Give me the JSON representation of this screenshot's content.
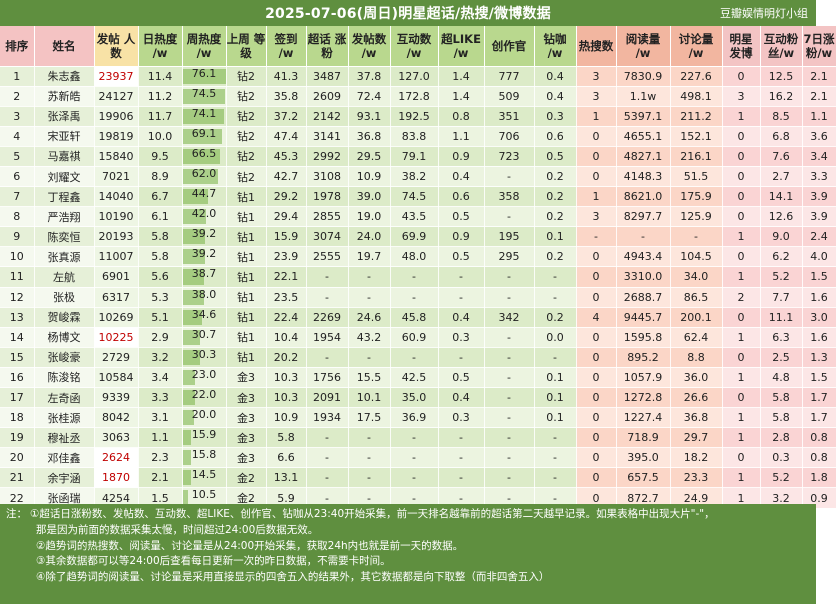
{
  "title": "2025-07-06(周日)明星超话/热搜/微博数据",
  "brand": "豆瓣娱情明灯小组",
  "columns": [
    {
      "key": "rank",
      "label": "排序",
      "cls": "h-pink"
    },
    {
      "key": "name",
      "label": "姓名",
      "cls": "h-pink"
    },
    {
      "key": "posts",
      "label": "发帖 人数",
      "cls": "h-yellow"
    },
    {
      "key": "daily_heat",
      "label": "日热度 /w",
      "cls": "h-green"
    },
    {
      "key": "weekly_heat",
      "label": "周热度 /w",
      "cls": "h-green"
    },
    {
      "key": "last_level",
      "label": "上周 等级",
      "cls": "h-green"
    },
    {
      "key": "checkin",
      "label": "签到 /w",
      "cls": "h-green"
    },
    {
      "key": "fans_growth",
      "label": "超话 涨粉",
      "cls": "h-green"
    },
    {
      "key": "post_count",
      "label": "发帖数 /w",
      "cls": "h-green"
    },
    {
      "key": "interaction",
      "label": "互动数 /w",
      "cls": "h-green"
    },
    {
      "key": "super_like",
      "label": "超LIKE /w",
      "cls": "h-green"
    },
    {
      "key": "creator",
      "label": "创作官",
      "cls": "h-green"
    },
    {
      "key": "diamond",
      "label": "钻咖 /w",
      "cls": "h-green"
    },
    {
      "key": "hot_search",
      "label": "热搜数",
      "cls": "h-salmon"
    },
    {
      "key": "reads",
      "label": "阅读量 /w",
      "cls": "h-salmon"
    },
    {
      "key": "discussion",
      "label": "讨论量 /w",
      "cls": "h-salmon"
    },
    {
      "key": "weibo_posts",
      "label": "明星 发博",
      "cls": "h-pink2"
    },
    {
      "key": "interact_fans",
      "label": "互动粉 丝/w",
      "cls": "h-pink2"
    },
    {
      "key": "weekly_fans",
      "label": "7日涨 粉/w",
      "cls": "h-pink2"
    }
  ],
  "bar_max": 76.1,
  "rows": [
    {
      "rank": "1",
      "name": "朱志鑫",
      "posts": "23937",
      "posts_red": true,
      "daily_heat": "11.4",
      "weekly_heat": "76.1",
      "weekly_heat_value": 76.1,
      "last_level": "钻2",
      "checkin": "41.3",
      "fans_growth": "3487",
      "post_count": "37.8",
      "interaction": "127.0",
      "super_like": "1.4",
      "creator": "777",
      "diamond": "0.4",
      "hot_search": "3",
      "reads": "7830.9",
      "discussion": "227.6",
      "weibo_posts": "0",
      "interact_fans": "12.5",
      "weekly_fans": "2.1"
    },
    {
      "rank": "2",
      "name": "苏新皓",
      "posts": "24127",
      "daily_heat": "11.2",
      "weekly_heat": "74.5",
      "weekly_heat_value": 74.5,
      "last_level": "钻2",
      "checkin": "35.8",
      "fans_growth": "2609",
      "post_count": "72.4",
      "interaction": "172.8",
      "super_like": "1.4",
      "creator": "509",
      "diamond": "0.4",
      "hot_search": "3",
      "reads": "1.1w",
      "reads_red": true,
      "discussion": "498.1",
      "discussion_red": true,
      "weibo_posts": "3",
      "interact_fans": "16.2",
      "weekly_fans": "2.1"
    },
    {
      "rank": "3",
      "name": "张泽禹",
      "posts": "19906",
      "daily_heat": "11.7",
      "weekly_heat": "74.1",
      "weekly_heat_value": 74.1,
      "last_level": "钻2",
      "checkin": "37.2",
      "fans_growth": "2142",
      "post_count": "93.1",
      "interaction": "192.5",
      "super_like": "0.8",
      "creator": "351",
      "diamond": "0.3",
      "hot_search": "1",
      "reads": "5397.1",
      "discussion": "211.2",
      "weibo_posts": "1",
      "interact_fans": "8.5",
      "weekly_fans": "1.1"
    },
    {
      "rank": "4",
      "name": "宋亚轩",
      "posts": "19819",
      "daily_heat": "10.0",
      "weekly_heat": "69.1",
      "weekly_heat_value": 69.1,
      "last_level": "钻2",
      "checkin": "47.4",
      "fans_growth": "3141",
      "post_count": "36.8",
      "interaction": "83.8",
      "super_like": "1.1",
      "creator": "706",
      "diamond": "0.6",
      "hot_search": "0",
      "reads": "4655.1",
      "discussion": "152.1",
      "weibo_posts": "0",
      "interact_fans": "6.8",
      "weekly_fans": "3.6"
    },
    {
      "rank": "5",
      "name": "马嘉祺",
      "posts": "15840",
      "daily_heat": "9.5",
      "weekly_heat": "66.5",
      "weekly_heat_value": 66.5,
      "last_level": "钻2",
      "checkin": "45.3",
      "fans_growth": "2992",
      "post_count": "29.5",
      "interaction": "79.1",
      "super_like": "0.9",
      "creator": "723",
      "diamond": "0.5",
      "hot_search": "0",
      "reads": "4827.1",
      "discussion": "216.1",
      "discussion_red": true,
      "weibo_posts": "0",
      "interact_fans": "7.6",
      "weekly_fans": "3.4"
    },
    {
      "rank": "6",
      "name": "刘耀文",
      "posts": "7021",
      "daily_heat": "8.9",
      "weekly_heat": "62.0",
      "weekly_heat_value": 62.0,
      "last_level": "钻2",
      "checkin": "42.7",
      "fans_growth": "3108",
      "post_count": "10.9",
      "interaction": "38.2",
      "super_like": "0.4",
      "creator": "-",
      "diamond": "0.2",
      "hot_search": "0",
      "reads": "4148.3",
      "discussion": "51.5",
      "weibo_posts": "0",
      "interact_fans": "2.7",
      "weekly_fans": "3.3"
    },
    {
      "rank": "7",
      "name": "丁程鑫",
      "posts": "14040",
      "daily_heat": "6.7",
      "weekly_heat": "44.7",
      "weekly_heat_value": 44.7,
      "last_level": "钻1",
      "checkin": "29.2",
      "fans_growth": "1978",
      "post_count": "39.0",
      "interaction": "74.5",
      "super_like": "0.6",
      "creator": "358",
      "diamond": "0.2",
      "hot_search": "1",
      "reads": "8621.0",
      "discussion": "175.9",
      "weibo_posts": "0",
      "interact_fans": "14.1",
      "weekly_fans": "3.9"
    },
    {
      "rank": "8",
      "name": "严浩翔",
      "posts": "10190",
      "daily_heat": "6.1",
      "weekly_heat": "42.0",
      "weekly_heat_value": 42.0,
      "last_level": "钻1",
      "checkin": "29.4",
      "fans_growth": "2855",
      "post_count": "19.0",
      "interaction": "43.5",
      "super_like": "0.5",
      "creator": "-",
      "diamond": "0.2",
      "hot_search": "3",
      "reads": "8297.7",
      "discussion": "125.9",
      "weibo_posts": "0",
      "interact_fans": "12.6",
      "weekly_fans": "3.9"
    },
    {
      "rank": "9",
      "name": "陈奕恒",
      "posts": "20193",
      "daily_heat": "5.8",
      "weekly_heat": "39.2",
      "weekly_heat_value": 39.2,
      "last_level": "钻1",
      "checkin": "15.9",
      "fans_growth": "3074",
      "post_count": "24.0",
      "interaction": "69.9",
      "super_like": "0.9",
      "creator": "195",
      "diamond": "0.1",
      "hot_search": "-",
      "reads": "-",
      "discussion": "-",
      "weibo_posts": "1",
      "interact_fans": "9.0",
      "weekly_fans": "2.4"
    },
    {
      "rank": "10",
      "name": "张真源",
      "posts": "11007",
      "daily_heat": "5.8",
      "weekly_heat": "39.2",
      "weekly_heat_value": 39.2,
      "last_level": "钻1",
      "checkin": "23.9",
      "fans_growth": "2555",
      "post_count": "19.7",
      "interaction": "48.0",
      "super_like": "0.5",
      "creator": "295",
      "diamond": "0.2",
      "hot_search": "0",
      "reads": "4943.4",
      "discussion": "104.5",
      "discussion_blue": true,
      "weibo_posts": "0",
      "interact_fans": "6.2",
      "weekly_fans": "4.0"
    },
    {
      "rank": "11",
      "name": "左航",
      "posts": "6901",
      "daily_heat": "5.6",
      "weekly_heat": "38.7",
      "weekly_heat_value": 38.7,
      "last_level": "钻1",
      "checkin": "22.1",
      "fans_growth": "-",
      "post_count": "-",
      "interaction": "-",
      "super_like": "-",
      "creator": "-",
      "diamond": "-",
      "hot_search": "0",
      "reads": "3310.0",
      "discussion": "34.0",
      "discussion_blue": true,
      "weibo_posts": "1",
      "interact_fans": "5.2",
      "weekly_fans": "1.5"
    },
    {
      "rank": "12",
      "name": "张极",
      "posts": "6317",
      "daily_heat": "5.3",
      "weekly_heat": "38.0",
      "weekly_heat_value": 38.0,
      "last_level": "钻1",
      "checkin": "23.5",
      "fans_growth": "-",
      "post_count": "-",
      "interaction": "-",
      "super_like": "-",
      "creator": "-",
      "diamond": "-",
      "hot_search": "0",
      "reads": "2688.7",
      "reads_red": true,
      "discussion": "86.5",
      "discussion_red": true,
      "weibo_posts": "2",
      "interact_fans": "7.7",
      "weekly_fans": "1.6"
    },
    {
      "rank": "13",
      "name": "贺峻霖",
      "posts": "10269",
      "daily_heat": "5.1",
      "weekly_heat": "34.6",
      "weekly_heat_value": 34.6,
      "last_level": "钻1",
      "checkin": "22.4",
      "fans_growth": "2269",
      "post_count": "24.6",
      "interaction": "45.8",
      "super_like": "0.4",
      "creator": "342",
      "diamond": "0.2",
      "hot_search": "4",
      "reads": "9445.7",
      "reads_red": true,
      "discussion": "200.1",
      "discussion_red": true,
      "weibo_posts": "0",
      "interact_fans": "11.1",
      "weekly_fans": "3.0"
    },
    {
      "rank": "14",
      "name": "杨博文",
      "posts": "10225",
      "posts_red": true,
      "daily_heat": "2.9",
      "daily_heat_blue": true,
      "weekly_heat": "30.7",
      "weekly_heat_value": 30.7,
      "last_level": "钻1",
      "checkin": "10.4",
      "fans_growth": "1954",
      "post_count": "43.2",
      "interaction": "60.9",
      "super_like": "0.3",
      "creator": "-",
      "diamond": "0.0",
      "hot_search": "0",
      "reads": "1595.8",
      "reads_red": true,
      "discussion": "62.4",
      "discussion_red": true,
      "weibo_posts": "1",
      "interact_fans": "6.3",
      "weekly_fans": "1.6"
    },
    {
      "rank": "15",
      "name": "张峻豪",
      "posts": "2729",
      "daily_heat": "3.2",
      "weekly_heat": "30.3",
      "weekly_heat_value": 30.3,
      "last_level": "钻1",
      "checkin": "20.2",
      "fans_growth": "-",
      "post_count": "-",
      "interaction": "-",
      "super_like": "-",
      "creator": "-",
      "diamond": "-",
      "hot_search": "0",
      "reads": "895.2",
      "discussion": "8.8",
      "weibo_posts": "0",
      "interact_fans": "2.5",
      "weekly_fans": "1.3"
    },
    {
      "rank": "16",
      "name": "陈浚铭",
      "posts": "10584",
      "daily_heat": "3.4",
      "weekly_heat": "23.0",
      "weekly_heat_value": 23.0,
      "last_level": "金3",
      "checkin": "10.3",
      "fans_growth": "1756",
      "post_count": "15.5",
      "interaction": "42.5",
      "super_like": "0.5",
      "creator": "-",
      "diamond": "0.1",
      "hot_search": "0",
      "reads": "1057.9",
      "discussion": "36.0",
      "weibo_posts": "1",
      "interact_fans": "4.8",
      "weekly_fans": "1.5"
    },
    {
      "rank": "17",
      "name": "左奇函",
      "posts": "9339",
      "daily_heat": "3.3",
      "weekly_heat": "22.0",
      "weekly_heat_value": 22.0,
      "last_level": "金3",
      "checkin": "10.3",
      "fans_growth": "2091",
      "post_count": "10.1",
      "interaction": "35.0",
      "super_like": "0.4",
      "creator": "-",
      "diamond": "0.1",
      "hot_search": "0",
      "reads": "1272.8",
      "discussion": "26.6",
      "weibo_posts": "0",
      "interact_fans": "5.8",
      "weekly_fans": "1.7"
    },
    {
      "rank": "18",
      "name": "张桂源",
      "posts": "8042",
      "daily_heat": "3.1",
      "weekly_heat": "20.0",
      "weekly_heat_value": 20.0,
      "last_level": "金3",
      "checkin": "10.9",
      "fans_growth": "1934",
      "post_count": "17.5",
      "interaction": "36.9",
      "super_like": "0.3",
      "creator": "-",
      "diamond": "0.1",
      "hot_search": "0",
      "reads": "1227.4",
      "discussion": "36.8",
      "weibo_posts": "1",
      "interact_fans": "5.8",
      "weekly_fans": "1.7"
    },
    {
      "rank": "19",
      "name": "穆祉丞",
      "posts": "3063",
      "daily_heat": "1.1",
      "weekly_heat": "15.9",
      "weekly_heat_value": 15.9,
      "last_level": "金3",
      "checkin": "5.8",
      "fans_growth": "-",
      "post_count": "-",
      "interaction": "-",
      "super_like": "-",
      "creator": "-",
      "diamond": "-",
      "hot_search": "0",
      "reads": "718.9",
      "discussion": "29.7",
      "weibo_posts": "1",
      "interact_fans": "2.8",
      "weekly_fans": "0.8"
    },
    {
      "rank": "20",
      "name": "邓佳鑫",
      "posts": "2624",
      "posts_red": true,
      "daily_heat": "2.3",
      "weekly_heat": "15.8",
      "weekly_heat_value": 15.8,
      "last_level": "金3",
      "checkin": "6.6",
      "fans_growth": "-",
      "post_count": "-",
      "interaction": "-",
      "super_like": "-",
      "creator": "-",
      "diamond": "-",
      "hot_search": "0",
      "reads": "395.0",
      "discussion": "18.2",
      "weibo_posts": "0",
      "interact_fans": "0.3",
      "weekly_fans": "0.8"
    },
    {
      "rank": "21",
      "name": "余宇涵",
      "posts": "1870",
      "posts_red": true,
      "daily_heat": "2.1",
      "weekly_heat": "14.5",
      "weekly_heat_value": 14.5,
      "last_level": "金2",
      "checkin": "13.1",
      "fans_growth": "-",
      "post_count": "-",
      "interaction": "-",
      "super_like": "-",
      "creator": "-",
      "diamond": "-",
      "hot_search": "0",
      "reads": "657.5",
      "reads_blue": true,
      "discussion": "23.3",
      "weibo_posts": "1",
      "interact_fans": "5.2",
      "weekly_fans": "1.8"
    },
    {
      "rank": "22",
      "name": "张函瑞",
      "posts": "4254",
      "daily_heat": "1.5",
      "weekly_heat": "10.5",
      "weekly_heat_value": 10.5,
      "last_level": "金2",
      "checkin": "5.9",
      "fans_growth": "-",
      "post_count": "-",
      "interaction": "-",
      "super_like": "-",
      "creator": "-",
      "diamond": "-",
      "hot_search": "0",
      "reads": "872.7",
      "discussion": "24.9",
      "weibo_posts": "1",
      "interact_fans": "3.2",
      "weekly_fans": "0.9"
    }
  ],
  "notes": {
    "prefix": "注：",
    "n1": "①超话日涨粉数、发帖数、互动数、超LIKE、创作官、钻咖从23:40开始采集，前一天排名越靠前的超话第二天越早记录。如果表格中出现大片\"-\"，",
    "n1b": "那是因为前面的数据采集太慢，时间超过24:00后数据无效。",
    "n2": "②趋势词的热搜数、阅读量、讨论量是从24:00开始采集，获取24h内也就是前一天的数据。",
    "n3": "③其余数据都可以等24:00后查看每日更新一次的昨日数据，不需要卡时间。",
    "n4": "④除了趋势词的阅读量、讨论量是采用直接显示的四舍五入的结果外，其它数据都是向下取整（而非四舍五入）"
  }
}
